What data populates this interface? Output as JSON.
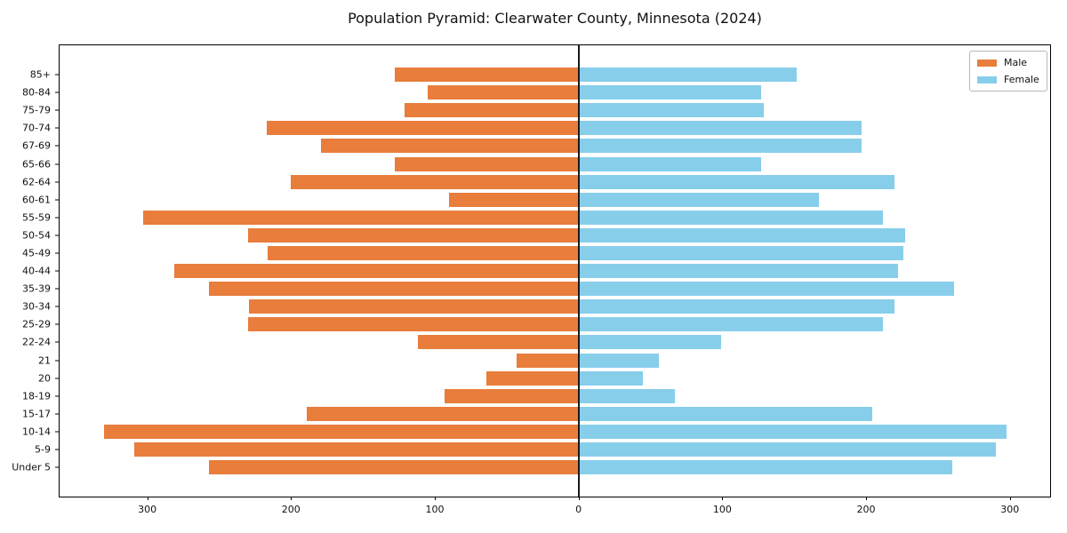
{
  "title": "Population Pyramid: Clearwater County, Minnesota (2024)",
  "legend": {
    "male_label": "Male",
    "female_label": "Female"
  },
  "colors": {
    "male": "#e87d3c",
    "female": "#87ceeb",
    "zero_line": "#1a1a1a",
    "spine": "#000000"
  },
  "chart_data": {
    "type": "bar",
    "variant": "population-pyramid",
    "title": "Population Pyramid: Clearwater County, Minnesota (2024)",
    "xlabel": "",
    "ylabel": "",
    "grid": false,
    "legend_position": "upper right",
    "categories": [
      "85+",
      "80-84",
      "75-79",
      "70-74",
      "67-69",
      "65-66",
      "62-64",
      "60-61",
      "55-59",
      "50-54",
      "45-49",
      "40-44",
      "35-39",
      "30-34",
      "25-29",
      "22-24",
      "21",
      "20",
      "18-19",
      "15-17",
      "10-14",
      "5-9",
      "Under 5"
    ],
    "series": [
      {
        "name": "Male",
        "side": "left",
        "color": "#e87d3c",
        "values": [
          128,
          105,
          121,
          217,
          179,
          128,
          200,
          90,
          303,
          230,
          216,
          281,
          257,
          229,
          230,
          112,
          43,
          64,
          93,
          189,
          330,
          309,
          257
        ]
      },
      {
        "name": "Female",
        "side": "right",
        "color": "#87ceeb",
        "values": [
          152,
          127,
          129,
          197,
          197,
          127,
          220,
          167,
          212,
          227,
          226,
          222,
          261,
          220,
          212,
          99,
          56,
          45,
          67,
          204,
          298,
          290,
          260
        ]
      }
    ],
    "x_ticks": [
      -300,
      -200,
      -100,
      0,
      100,
      200,
      300
    ],
    "x_tick_labels": [
      "300",
      "200",
      "100",
      "0",
      "100",
      "200",
      "300"
    ],
    "xlim": [
      -361,
      328
    ]
  }
}
